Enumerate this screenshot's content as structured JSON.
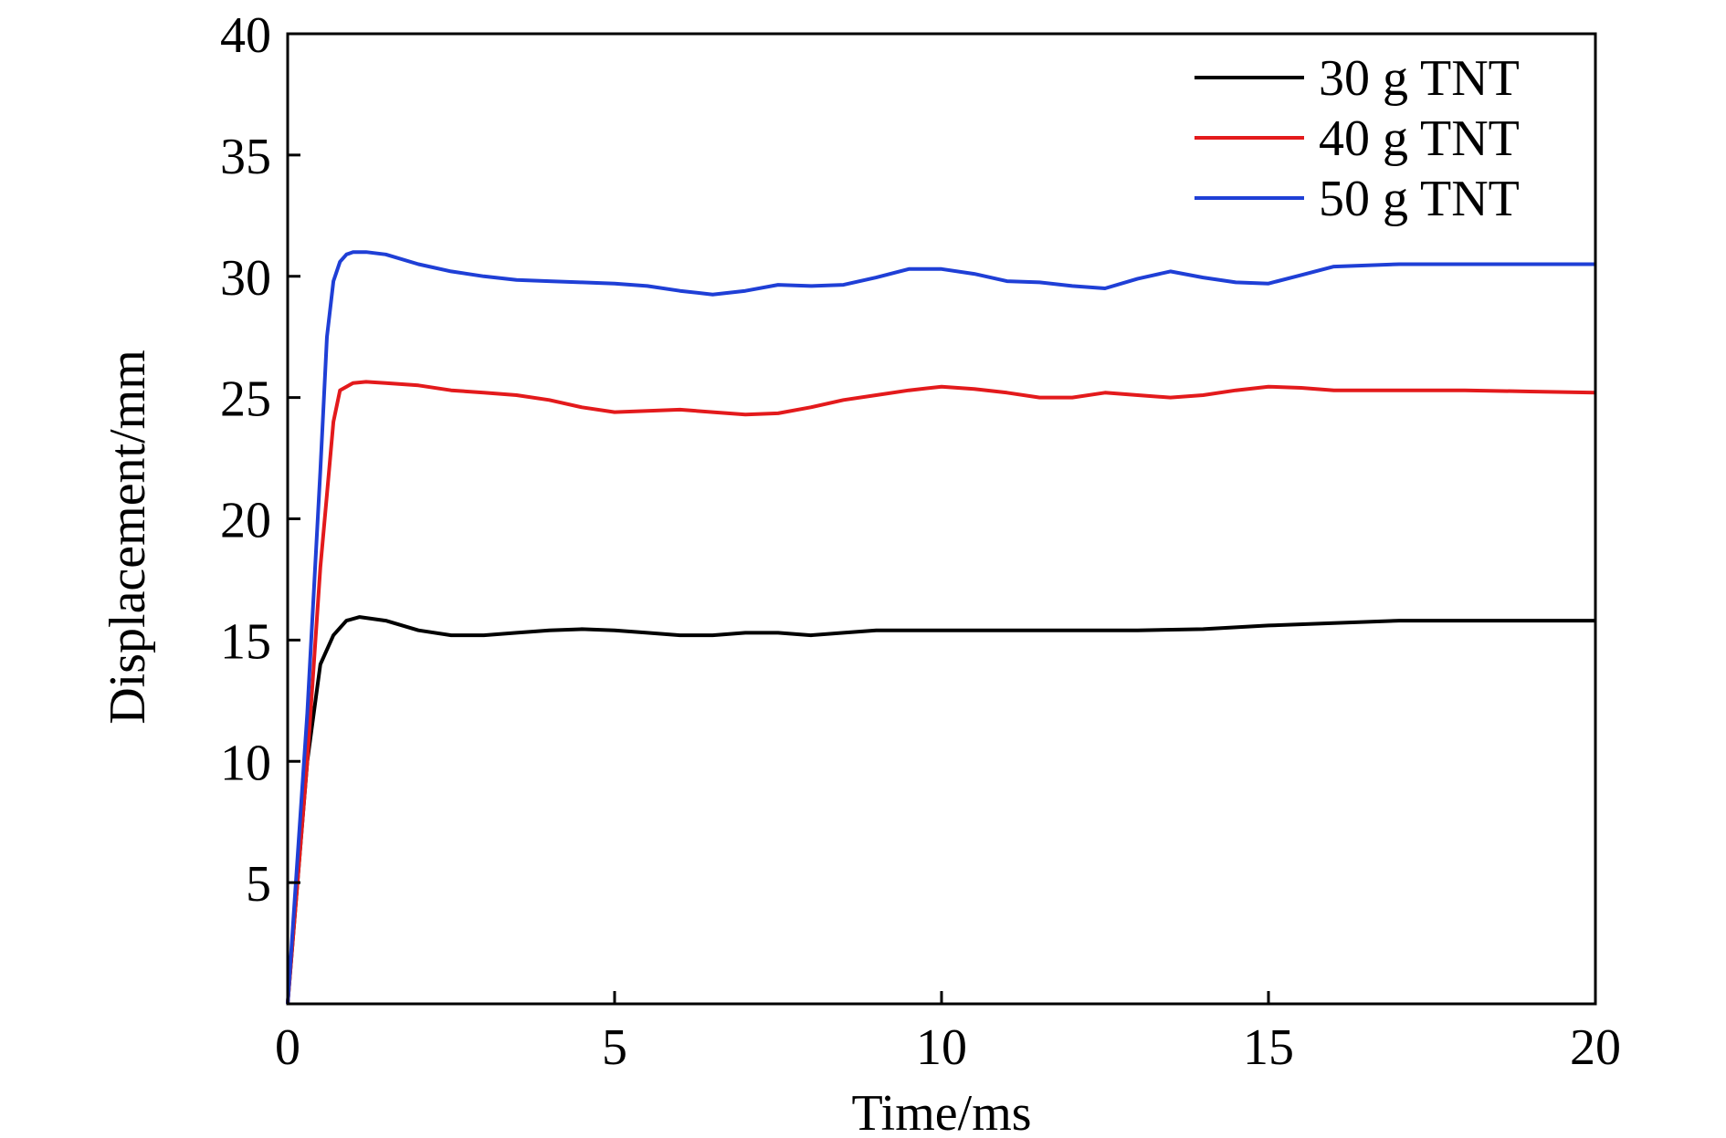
{
  "chart_data": {
    "type": "line",
    "xlabel": "Time/ms",
    "ylabel": "Displacement/mm",
    "xlim": [
      0,
      20
    ],
    "ylim": [
      0,
      40
    ],
    "x_ticks": [
      0,
      5,
      10,
      15,
      20
    ],
    "y_ticks": [
      5,
      10,
      15,
      20,
      25,
      30,
      35,
      40
    ],
    "x_tick_labels": [
      "0",
      "5",
      "10",
      "15",
      "20"
    ],
    "y_tick_labels": [
      "5",
      "10",
      "15",
      "20",
      "25",
      "30",
      "35",
      "40"
    ],
    "grid": false,
    "legend_position": "top-right",
    "series": [
      {
        "name": "30 g TNT",
        "color": "#000000",
        "x": [
          0,
          0.3,
          0.5,
          0.7,
          0.9,
          1.1,
          1.5,
          2.0,
          2.5,
          3.0,
          3.5,
          4.0,
          4.5,
          5.0,
          5.5,
          6.0,
          6.5,
          7.0,
          7.5,
          8.0,
          8.5,
          9.0,
          9.5,
          10.0,
          11.0,
          12.0,
          13.0,
          14.0,
          15.0,
          16.0,
          17.0,
          18.0,
          19.0,
          20.0
        ],
        "y": [
          0,
          10.0,
          14.0,
          15.2,
          15.8,
          15.95,
          15.8,
          15.4,
          15.2,
          15.2,
          15.3,
          15.4,
          15.45,
          15.4,
          15.3,
          15.2,
          15.2,
          15.3,
          15.3,
          15.2,
          15.3,
          15.4,
          15.4,
          15.4,
          15.4,
          15.4,
          15.4,
          15.45,
          15.6,
          15.7,
          15.8,
          15.8,
          15.8,
          15.8
        ]
      },
      {
        "name": "40 g TNT",
        "color": "#e31a1c",
        "x": [
          0,
          0.3,
          0.5,
          0.6,
          0.7,
          0.8,
          1.0,
          1.2,
          1.5,
          2.0,
          2.5,
          3.0,
          3.5,
          4.0,
          4.5,
          5.0,
          5.5,
          6.0,
          6.5,
          7.0,
          7.5,
          8.0,
          8.5,
          9.0,
          9.5,
          10.0,
          10.5,
          11.0,
          11.5,
          12.0,
          12.5,
          13.0,
          13.5,
          14.0,
          14.5,
          15.0,
          15.5,
          16.0,
          17.0,
          18.0,
          19.0,
          20.0
        ],
        "y": [
          0,
          10.0,
          18.0,
          21.0,
          24.0,
          25.3,
          25.6,
          25.65,
          25.6,
          25.5,
          25.3,
          25.2,
          25.1,
          24.9,
          24.6,
          24.4,
          24.45,
          24.5,
          24.4,
          24.3,
          24.35,
          24.6,
          24.9,
          25.1,
          25.3,
          25.45,
          25.35,
          25.2,
          25.0,
          25.0,
          25.2,
          25.1,
          25.0,
          25.1,
          25.3,
          25.45,
          25.4,
          25.3,
          25.3,
          25.3,
          25.25,
          25.2
        ]
      },
      {
        "name": "50 g TNT",
        "color": "#1f3fd6",
        "x": [
          0,
          0.3,
          0.5,
          0.6,
          0.7,
          0.8,
          0.9,
          1.0,
          1.2,
          1.5,
          2.0,
          2.5,
          3.0,
          3.5,
          4.0,
          4.5,
          5.0,
          5.5,
          6.0,
          6.5,
          7.0,
          7.5,
          8.0,
          8.5,
          9.0,
          9.5,
          10.0,
          10.5,
          11.0,
          11.5,
          12.0,
          12.5,
          13.0,
          13.5,
          14.0,
          14.5,
          15.0,
          15.5,
          16.0,
          17.0,
          18.0,
          19.0,
          20.0
        ],
        "y": [
          0,
          12.0,
          22.0,
          27.5,
          29.8,
          30.6,
          30.9,
          31.0,
          31.0,
          30.9,
          30.5,
          30.2,
          30.0,
          29.85,
          29.8,
          29.75,
          29.7,
          29.6,
          29.4,
          29.25,
          29.4,
          29.65,
          29.6,
          29.65,
          29.95,
          30.3,
          30.3,
          30.1,
          29.8,
          29.75,
          29.6,
          29.5,
          29.9,
          30.2,
          29.95,
          29.75,
          29.7,
          30.05,
          30.4,
          30.5,
          30.5,
          30.5,
          30.5
        ]
      }
    ]
  }
}
